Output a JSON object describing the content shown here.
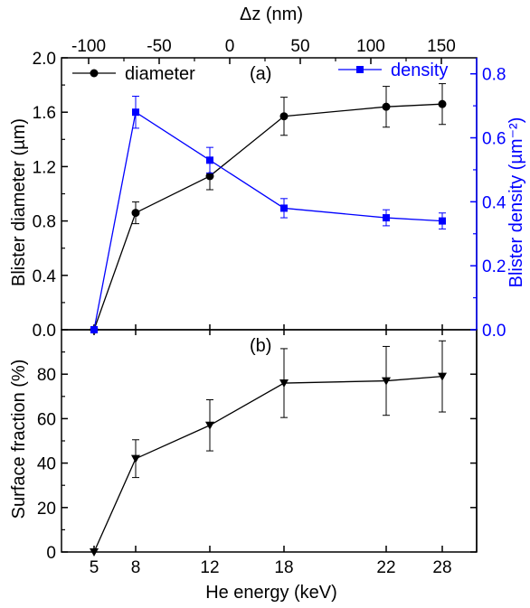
{
  "colors": {
    "black": "#000000",
    "blue": "#0000ff"
  },
  "chart_data": [
    {
      "type": "line",
      "panel_label": "(a)",
      "x": [
        5,
        8,
        12,
        18,
        22,
        28
      ],
      "xlabel": "He energy (keV)",
      "xticks": [
        "5",
        "8",
        "12",
        "18",
        "22",
        "28"
      ],
      "top_axis": {
        "label": "Δz (nm)",
        "xlim": [
          -100,
          175
        ],
        "ticks": [
          -100,
          -50,
          0,
          50,
          100,
          150
        ],
        "tick_labels": [
          "-100",
          "-50",
          "0",
          "50",
          "100",
          "150"
        ]
      },
      "ylabel": "Blister diameter (µm)",
      "ylim": [
        0,
        2.0
      ],
      "yticks": [
        "0.0",
        "0.4",
        "0.8",
        "1.2",
        "1.6",
        "2.0"
      ],
      "y2label": "Blister density (µm⁻²)",
      "y2lim": [
        0,
        0.85
      ],
      "y2ticks": [
        "0.0",
        "0.2",
        "0.4",
        "0.6",
        "0.8"
      ],
      "legend_position": "top",
      "series": [
        {
          "name": "diameter",
          "axis": "left",
          "marker": "circle",
          "color": "#000000",
          "values": [
            0,
            0.86,
            1.13,
            1.57,
            1.64,
            1.66
          ],
          "errors": [
            0,
            0.08,
            0.1,
            0.14,
            0.15,
            0.15
          ]
        },
        {
          "name": "density",
          "axis": "right",
          "marker": "square",
          "color": "#0000ff",
          "values": [
            0,
            0.68,
            0.53,
            0.38,
            0.35,
            0.34
          ],
          "errors": [
            0,
            0.05,
            0.04,
            0.03,
            0.025,
            0.025
          ]
        }
      ]
    },
    {
      "type": "line",
      "panel_label": "(b)",
      "x": [
        5,
        8,
        12,
        18,
        22,
        28
      ],
      "xlabel": "He energy (keV)",
      "xticks": [
        "5",
        "8",
        "12",
        "18",
        "22",
        "28"
      ],
      "ylabel": "Surface fraction (%)",
      "ylim": [
        0,
        100
      ],
      "yticks": [
        "0",
        "20",
        "40",
        "60",
        "80"
      ],
      "series": [
        {
          "marker": "triangle-down",
          "color": "#000000",
          "values": [
            0,
            42,
            57,
            76,
            77,
            79
          ],
          "errors": [
            0,
            8.5,
            11.5,
            15.5,
            15.5,
            16
          ]
        }
      ]
    }
  ]
}
